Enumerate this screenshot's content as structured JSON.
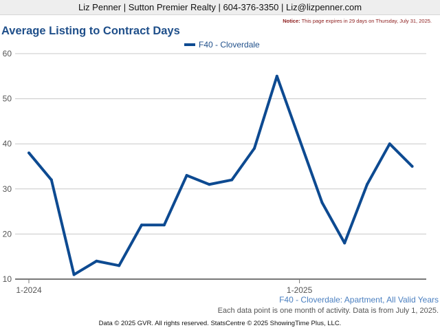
{
  "header": {
    "contact_line": "Liz Penner | Sutton Premier Realty | 604-376-3350 | Liz@lizpenner.com",
    "notice_label": "Notice:",
    "notice_text": " This page expires in 29 days on Thursday, July 31, 2025."
  },
  "footer": {
    "series_caption": "F40 - Cloverdale: Apartment, All Valid Years",
    "note": "Each data point is one month of activity. Data is from July 1, 2025.",
    "copyright": "Data © 2025 GVR. All rights reserved. StatsCentre © 2025 ShowingTime Plus, LLC."
  },
  "chart_data": {
    "type": "line",
    "title": "Average Listing to Contract Days",
    "xlabel": "",
    "ylabel": "",
    "x": [
      "1-2024",
      "2-2024",
      "3-2024",
      "4-2024",
      "5-2024",
      "6-2024",
      "7-2024",
      "8-2024",
      "9-2024",
      "10-2024",
      "11-2024",
      "12-2024",
      "1-2025",
      "2-2025",
      "3-2025",
      "4-2025",
      "5-2025",
      "6-2025"
    ],
    "x_tick_labels": [
      "1-2024",
      "1-2025"
    ],
    "y_ticks": [
      10,
      20,
      30,
      40,
      50,
      60
    ],
    "ylim": [
      10,
      60
    ],
    "grid": true,
    "legend_position": "top-center",
    "series": [
      {
        "name": "F40 - Cloverdale",
        "color": "#0d4a91",
        "values": [
          38,
          32,
          11,
          14,
          13,
          22,
          22,
          33,
          31,
          32,
          39,
          55,
          41,
          27,
          18,
          31,
          40,
          35
        ]
      }
    ]
  }
}
